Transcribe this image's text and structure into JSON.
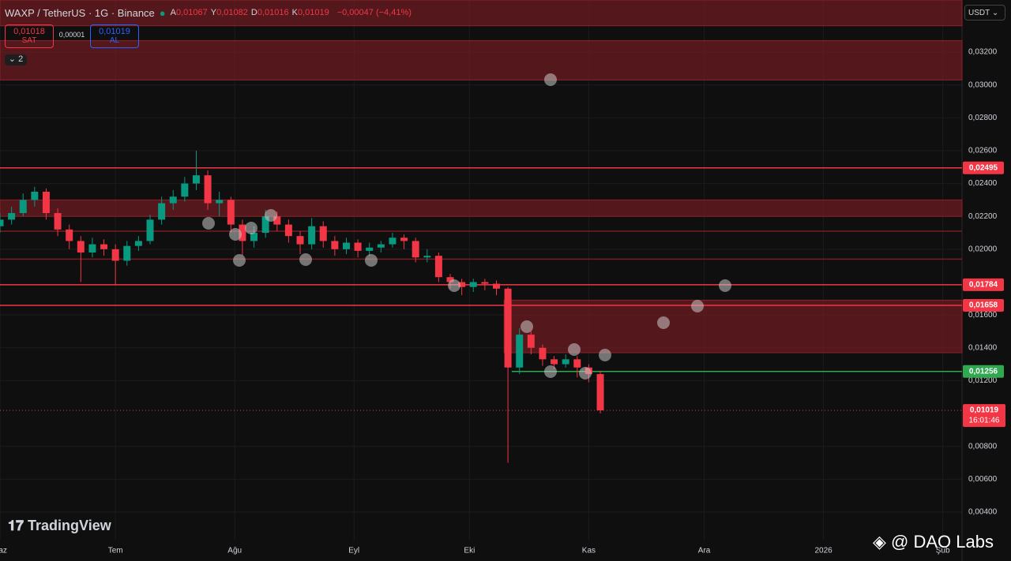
{
  "header": {
    "symbol": "WAXP / TetherUS · 1G · Binance",
    "ohlc": [
      {
        "key": "A",
        "value": "0,01067"
      },
      {
        "key": "Y",
        "value": "0,01082"
      },
      {
        "key": "D",
        "value": "0,01016"
      },
      {
        "key": "K",
        "value": "0,01019"
      }
    ],
    "change": "−0,00047 (−4,41%)",
    "sell_price": "0,01018",
    "sell_label": "SAT",
    "spread": "0,00001",
    "buy_price": "0,01019",
    "buy_label": "AL",
    "indicators_count": "2",
    "currency": "USDT"
  },
  "watermark": "TradingView",
  "credit": "@ DAO Labs",
  "chart_data": {
    "type": "candlestick",
    "up_color": "#089981",
    "down_color": "#f23645",
    "x": [
      0,
      3,
      6,
      9,
      12,
      15,
      18,
      21,
      24,
      27,
      30,
      33,
      36,
      39,
      42,
      45,
      48,
      51,
      54,
      57,
      60,
      63,
      66,
      69,
      72,
      75,
      78,
      81,
      84,
      87,
      90,
      93,
      96,
      99,
      102,
      105,
      108,
      111,
      114,
      117,
      120,
      123,
      126,
      129,
      132,
      135,
      138,
      141,
      144,
      147,
      150,
      153,
      156
    ],
    "open": [
      0.0214,
      0.0218,
      0.0222,
      0.023,
      0.0235,
      0.0222,
      0.0212,
      0.0205,
      0.0198,
      0.0203,
      0.02,
      0.0193,
      0.0202,
      0.0205,
      0.0218,
      0.0228,
      0.0232,
      0.024,
      0.0245,
      0.0228,
      0.023,
      0.0215,
      0.0205,
      0.021,
      0.022,
      0.0215,
      0.0208,
      0.0203,
      0.0214,
      0.0205,
      0.02,
      0.0204,
      0.0199,
      0.0201,
      0.0203,
      0.0207,
      0.0205,
      0.0195,
      0.0196,
      0.0183,
      0.018,
      0.0177,
      0.018,
      0.0179,
      0.0176,
      0.0128,
      0.0148,
      0.014,
      0.0133,
      0.013,
      0.0133,
      0.0128,
      0.0124
    ],
    "high": [
      0.0222,
      0.0226,
      0.0234,
      0.0238,
      0.0237,
      0.0225,
      0.0215,
      0.0208,
      0.0207,
      0.0206,
      0.0203,
      0.0205,
      0.0208,
      0.0221,
      0.0232,
      0.0236,
      0.0244,
      0.026,
      0.0248,
      0.0235,
      0.0232,
      0.0218,
      0.0214,
      0.0224,
      0.0223,
      0.0218,
      0.0211,
      0.0219,
      0.0217,
      0.0208,
      0.0207,
      0.0206,
      0.0204,
      0.0205,
      0.021,
      0.0209,
      0.0207,
      0.02,
      0.0198,
      0.0185,
      0.0182,
      0.0182,
      0.0182,
      0.0181,
      0.0177,
      0.0152,
      0.015,
      0.0142,
      0.0135,
      0.0136,
      0.0135,
      0.013,
      0.0126
    ],
    "low": [
      0.021,
      0.0215,
      0.022,
      0.0226,
      0.0218,
      0.0208,
      0.02,
      0.018,
      0.0195,
      0.0196,
      0.0178,
      0.019,
      0.0199,
      0.0203,
      0.0215,
      0.0224,
      0.0229,
      0.0236,
      0.0224,
      0.022,
      0.021,
      0.0196,
      0.0201,
      0.0207,
      0.0211,
      0.0204,
      0.0197,
      0.02,
      0.0201,
      0.0196,
      0.0197,
      0.0195,
      0.0196,
      0.0198,
      0.0201,
      0.02,
      0.0192,
      0.0192,
      0.018,
      0.0176,
      0.0172,
      0.0174,
      0.0175,
      0.0172,
      0.007,
      0.0124,
      0.0136,
      0.0129,
      0.0127,
      0.0128,
      0.0122,
      0.0119,
      0.01
    ],
    "close": [
      0.0218,
      0.0222,
      0.023,
      0.0235,
      0.0222,
      0.0212,
      0.0205,
      0.0198,
      0.0203,
      0.02,
      0.0193,
      0.0202,
      0.0205,
      0.0218,
      0.0228,
      0.0232,
      0.024,
      0.0245,
      0.0228,
      0.023,
      0.0215,
      0.0205,
      0.021,
      0.022,
      0.0215,
      0.0208,
      0.0203,
      0.0214,
      0.0205,
      0.02,
      0.0204,
      0.0199,
      0.0201,
      0.0203,
      0.0207,
      0.0205,
      0.0195,
      0.0196,
      0.0183,
      0.018,
      0.0177,
      0.018,
      0.0179,
      0.0176,
      0.0128,
      0.0148,
      0.014,
      0.0133,
      0.013,
      0.0133,
      0.0128,
      0.0124,
      0.01019
    ],
    "xlim": [
      0,
      250
    ],
    "xticks": [
      {
        "value": 0,
        "label": "Haz"
      },
      {
        "value": 30,
        "label": "Tem"
      },
      {
        "value": 61,
        "label": "Ağu"
      },
      {
        "value": 92,
        "label": "Eyl"
      },
      {
        "value": 122,
        "label": "Eki"
      },
      {
        "value": 153,
        "label": "Kas"
      },
      {
        "value": 183,
        "label": "Ara"
      },
      {
        "value": 214,
        "label": "2026"
      },
      {
        "value": 245,
        "label": "Şub"
      }
    ],
    "ylim": [
      0.00227,
      0.03517
    ],
    "yticks": [
      {
        "value": 0.032,
        "label": "0,03200"
      },
      {
        "value": 0.03,
        "label": "0,03000"
      },
      {
        "value": 0.028,
        "label": "0,02800"
      },
      {
        "value": 0.026,
        "label": "0,02600"
      },
      {
        "value": 0.024,
        "label": "0,02400"
      },
      {
        "value": 0.022,
        "label": "0,02200"
      },
      {
        "value": 0.02,
        "label": "0,02000"
      },
      {
        "value": 0.016,
        "label": "0,01600"
      },
      {
        "value": 0.014,
        "label": "0,01400"
      },
      {
        "value": 0.012,
        "label": "0,01200"
      },
      {
        "value": 0.008,
        "label": "0,00800"
      },
      {
        "value": 0.006,
        "label": "0,00600"
      },
      {
        "value": 0.004,
        "label": "0,00400"
      }
    ],
    "grid": true,
    "zones": [
      {
        "from": 0.0336,
        "to": 0.03517,
        "start": 0
      },
      {
        "from": 0.0303,
        "to": 0.0327,
        "start": 0
      },
      {
        "from": 0.022,
        "to": 0.023,
        "start": 0
      },
      {
        "from": 0.0137,
        "to": 0.0169,
        "start": 131
      }
    ],
    "levels": [
      {
        "value": 0.02495,
        "label": "0,02495",
        "color": "#f23645",
        "start": 0
      },
      {
        "value": 0.0211,
        "color": "#7a1c22",
        "start": 0
      },
      {
        "value": 0.0194,
        "color": "#7a1c22",
        "start": 0
      },
      {
        "value": 0.01784,
        "label": "0,01784",
        "color": "#f23645",
        "start": 0
      },
      {
        "value": 0.01658,
        "label": "0,01658",
        "color": "#f23645",
        "start": 0
      },
      {
        "value": 0.01256,
        "label": "0,01256",
        "color": "#2fa84f",
        "start": 133
      }
    ],
    "last_price": {
      "value": 0.01019,
      "label": "0,01019",
      "countdown": "16:01:46",
      "color": "#f23645"
    }
  }
}
